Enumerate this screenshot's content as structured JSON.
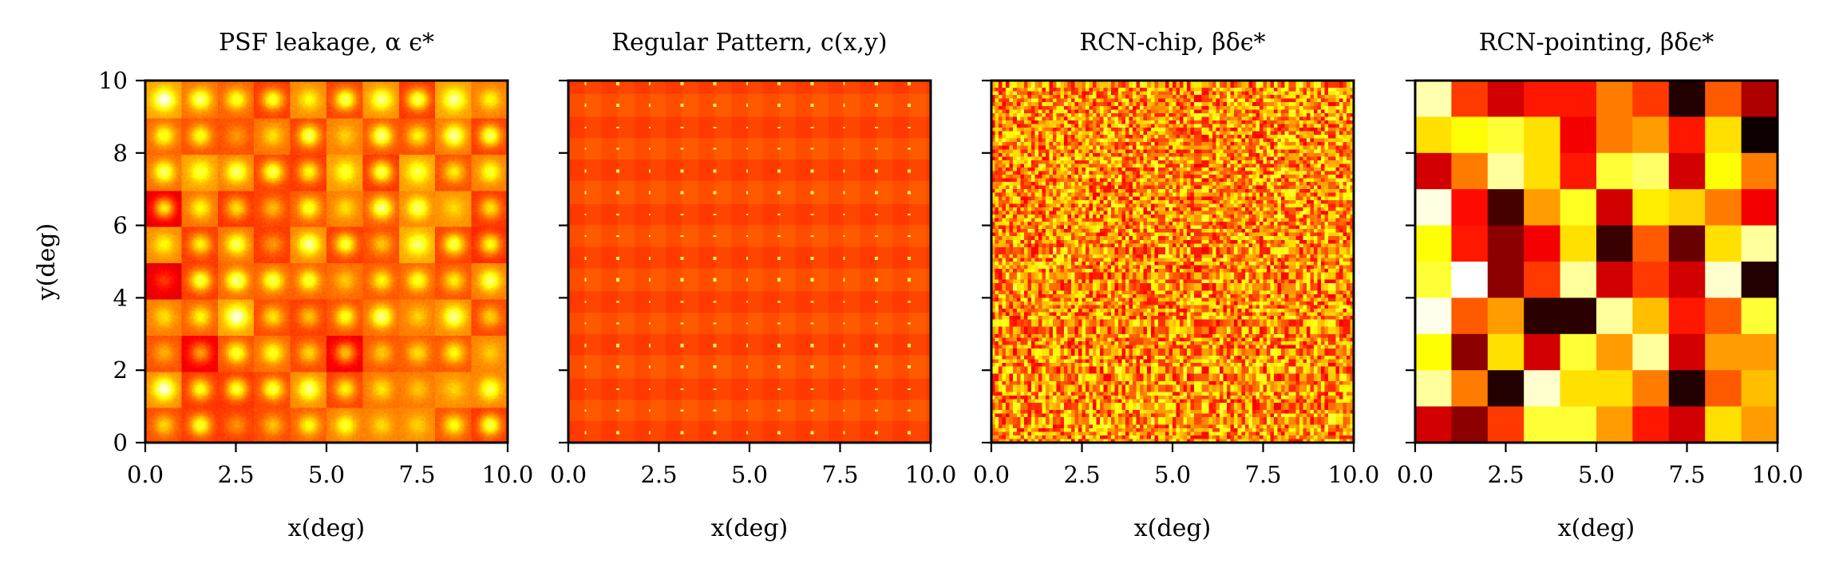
{
  "chart_data": [
    {
      "type": "heatmap",
      "title": "PSF leakage, α ϵ*",
      "xlabel": "x(deg)",
      "ylabel": "y(deg)",
      "xlim": [
        0,
        10
      ],
      "ylim": [
        0,
        10
      ],
      "xticks": [
        "0.0",
        "2.5",
        "5.0",
        "7.5",
        "10.0"
      ],
      "yticks": [
        "0",
        "2",
        "4",
        "6",
        "8",
        "10"
      ],
      "colormap": "hot",
      "pattern": "chip-blocks with smooth bright centers (10x10 chips, ~80px texture)"
    },
    {
      "type": "heatmap",
      "title": "Regular Pattern, c(x,y)",
      "xlabel": "x(deg)",
      "ylabel": "",
      "xlim": [
        0,
        10
      ],
      "ylim": [
        0,
        10
      ],
      "xticks": [
        "0.0",
        "2.5",
        "5.0",
        "7.5",
        "10.0"
      ],
      "yticks": [
        "0",
        "2",
        "4",
        "6",
        "8",
        "10"
      ],
      "colormap": "hot",
      "pattern": "regular periodic grid, uniform orange with bright dots"
    },
    {
      "type": "heatmap",
      "title": "RCN-chip, βδϵ*",
      "xlabel": "x(deg)",
      "ylabel": "",
      "xlim": [
        0,
        10
      ],
      "ylim": [
        0,
        10
      ],
      "xticks": [
        "0.0",
        "2.5",
        "5.0",
        "7.5",
        "10.0"
      ],
      "yticks": [
        "0",
        "2",
        "4",
        "6",
        "8",
        "10"
      ],
      "colormap": "hot",
      "pattern": "fine random noise"
    },
    {
      "type": "heatmap",
      "title": "RCN-pointing, βδϵ*",
      "xlabel": "x(deg)",
      "ylabel": "",
      "xlim": [
        0,
        10
      ],
      "ylim": [
        0,
        10
      ],
      "xticks": [
        "0.0",
        "2.5",
        "5.0",
        "7.5",
        "10.0"
      ],
      "yticks": [
        "0",
        "2",
        "4",
        "6",
        "8",
        "10"
      ],
      "colormap": "hot",
      "grid_values": [
        [
          0.92,
          0.45,
          0.3,
          0.4,
          0.4,
          0.55,
          0.45,
          0.05,
          0.5,
          0.25
        ],
        [
          0.7,
          0.75,
          0.8,
          0.7,
          0.35,
          0.55,
          0.6,
          0.4,
          0.7,
          0.02
        ],
        [
          0.3,
          0.55,
          0.9,
          0.7,
          0.4,
          0.8,
          0.85,
          0.3,
          0.75,
          0.55
        ],
        [
          0.97,
          0.38,
          0.1,
          0.6,
          0.78,
          0.3,
          0.72,
          0.68,
          0.55,
          0.35
        ],
        [
          0.75,
          0.4,
          0.2,
          0.35,
          0.7,
          0.08,
          0.5,
          0.15,
          0.7,
          0.9
        ],
        [
          0.8,
          1.0,
          0.2,
          0.45,
          0.9,
          0.3,
          0.45,
          0.3,
          0.95,
          0.05
        ],
        [
          0.98,
          0.5,
          0.6,
          0.06,
          0.06,
          0.9,
          0.65,
          0.4,
          0.5,
          0.8
        ],
        [
          0.75,
          0.2,
          0.7,
          0.3,
          0.8,
          0.6,
          0.9,
          0.3,
          0.6,
          0.6
        ],
        [
          0.9,
          0.55,
          0.05,
          0.95,
          0.7,
          0.7,
          0.55,
          0.05,
          0.5,
          0.65
        ],
        [
          0.3,
          0.2,
          0.45,
          0.8,
          0.8,
          0.6,
          0.4,
          0.3,
          0.7,
          0.6
        ]
      ]
    }
  ]
}
